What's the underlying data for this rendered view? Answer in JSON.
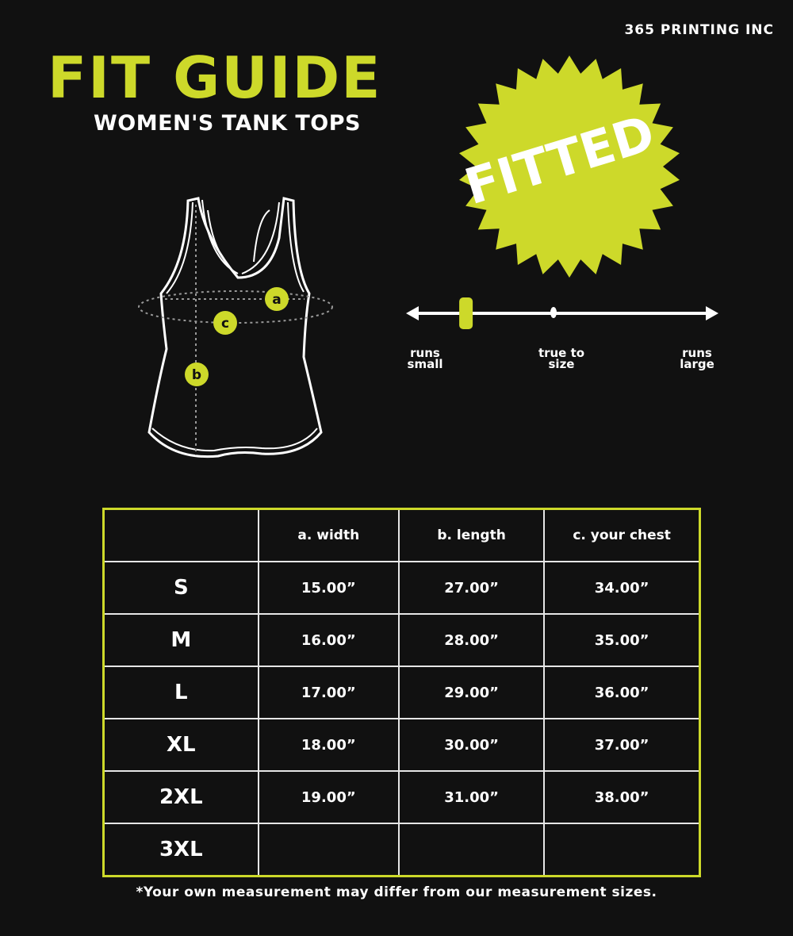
{
  "brand": "365 PRINTING INC",
  "title": "FIT GUIDE",
  "subtitle": "WOMEN'S TANK TOPS",
  "badge": "FITTED",
  "accent_color": "#cdd92a",
  "diagram_labels": {
    "a": "a",
    "b": "b",
    "c": "c"
  },
  "fit_scale": {
    "labels": [
      "runs\nsmall",
      "true to\nsize",
      "runs\nlarge"
    ],
    "level": 0.17
  },
  "table": {
    "headers": [
      "",
      "a. width",
      "b. length",
      "c. your chest"
    ],
    "rows": [
      [
        "S",
        "15.00”",
        "27.00”",
        "34.00”"
      ],
      [
        "M",
        "16.00”",
        "28.00”",
        "35.00”"
      ],
      [
        "L",
        "17.00”",
        "29.00”",
        "36.00”"
      ],
      [
        "XL",
        "18.00”",
        "30.00”",
        "37.00”"
      ],
      [
        "2XL",
        "19.00”",
        "31.00”",
        "38.00”"
      ],
      [
        "3XL",
        "",
        "",
        ""
      ]
    ]
  },
  "note": "*Your own measurement may differ from our measurement sizes."
}
